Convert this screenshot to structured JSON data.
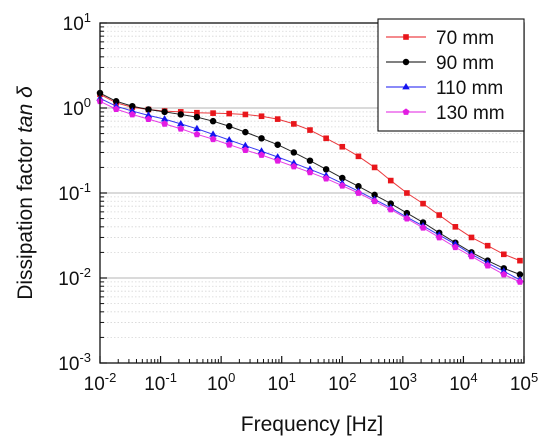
{
  "chart_data": {
    "type": "line",
    "title": "",
    "xlabel": "Frequency [Hz]",
    "ylabel_prefix": "Dissipation factor ",
    "ylabel_italic": "tan δ",
    "xscale": "log",
    "yscale": "log",
    "xlim": [
      0.01,
      100000
    ],
    "ylim": [
      0.001,
      10
    ],
    "grid": "horizontal-dotted",
    "legend_position": "top-right",
    "x_ticks": [
      {
        "value": 0.01,
        "base": "10",
        "exp": "-2"
      },
      {
        "value": 0.1,
        "base": "10",
        "exp": "-1"
      },
      {
        "value": 1,
        "base": "10",
        "exp": "0"
      },
      {
        "value": 10,
        "base": "10",
        "exp": "1"
      },
      {
        "value": 100,
        "base": "10",
        "exp": "2"
      },
      {
        "value": 1000,
        "base": "10",
        "exp": "3"
      },
      {
        "value": 10000,
        "base": "10",
        "exp": "4"
      },
      {
        "value": 100000,
        "base": "10",
        "exp": "5"
      }
    ],
    "y_ticks": [
      {
        "value": 0.001,
        "base": "10",
        "exp": "-3"
      },
      {
        "value": 0.01,
        "base": "10",
        "exp": "-2"
      },
      {
        "value": 0.1,
        "base": "10",
        "exp": "-1"
      },
      {
        "value": 1,
        "base": "10",
        "exp": "0"
      },
      {
        "value": 10,
        "base": "10",
        "exp": "1"
      }
    ],
    "x": [
      0.01,
      0.01848,
      0.03415,
      0.0631,
      0.1166,
      0.2154,
      0.3981,
      0.7356,
      1.359,
      2.512,
      4.642,
      8.577,
      15.85,
      29.29,
      54.12,
      100,
      184.8,
      341.5,
      631,
      1166,
      2154,
      3981,
      7356,
      13590,
      25120,
      46420,
      85770
    ],
    "series": [
      {
        "name": "70 mm",
        "color": "#e8161b",
        "marker": "square",
        "values": [
          1.45,
          1.15,
          1.02,
          0.96,
          0.92,
          0.9,
          0.88,
          0.87,
          0.86,
          0.84,
          0.8,
          0.74,
          0.65,
          0.55,
          0.44,
          0.35,
          0.27,
          0.2,
          0.14,
          0.1,
          0.075,
          0.055,
          0.04,
          0.03,
          0.024,
          0.019,
          0.016
        ]
      },
      {
        "name": "90 mm",
        "color": "#000000",
        "marker": "circle",
        "values": [
          1.5,
          1.2,
          1.05,
          0.96,
          0.9,
          0.84,
          0.78,
          0.7,
          0.61,
          0.52,
          0.44,
          0.37,
          0.3,
          0.24,
          0.19,
          0.15,
          0.12,
          0.095,
          0.075,
          0.058,
          0.045,
          0.034,
          0.026,
          0.02,
          0.016,
          0.013,
          0.011
        ]
      },
      {
        "name": "110 mm",
        "color": "#1414f0",
        "marker": "triangle",
        "values": [
          1.3,
          1.05,
          0.92,
          0.82,
          0.74,
          0.65,
          0.57,
          0.49,
          0.42,
          0.36,
          0.31,
          0.265,
          0.225,
          0.19,
          0.16,
          0.13,
          0.105,
          0.084,
          0.067,
          0.052,
          0.041,
          0.032,
          0.025,
          0.019,
          0.015,
          0.012,
          0.0095
        ]
      },
      {
        "name": "130 mm",
        "color": "#e21ce2",
        "marker": "pentagon",
        "values": [
          1.2,
          0.97,
          0.84,
          0.74,
          0.65,
          0.57,
          0.49,
          0.43,
          0.37,
          0.32,
          0.28,
          0.24,
          0.205,
          0.175,
          0.148,
          0.122,
          0.1,
          0.08,
          0.064,
          0.05,
          0.039,
          0.03,
          0.023,
          0.018,
          0.014,
          0.011,
          0.009
        ]
      }
    ]
  }
}
